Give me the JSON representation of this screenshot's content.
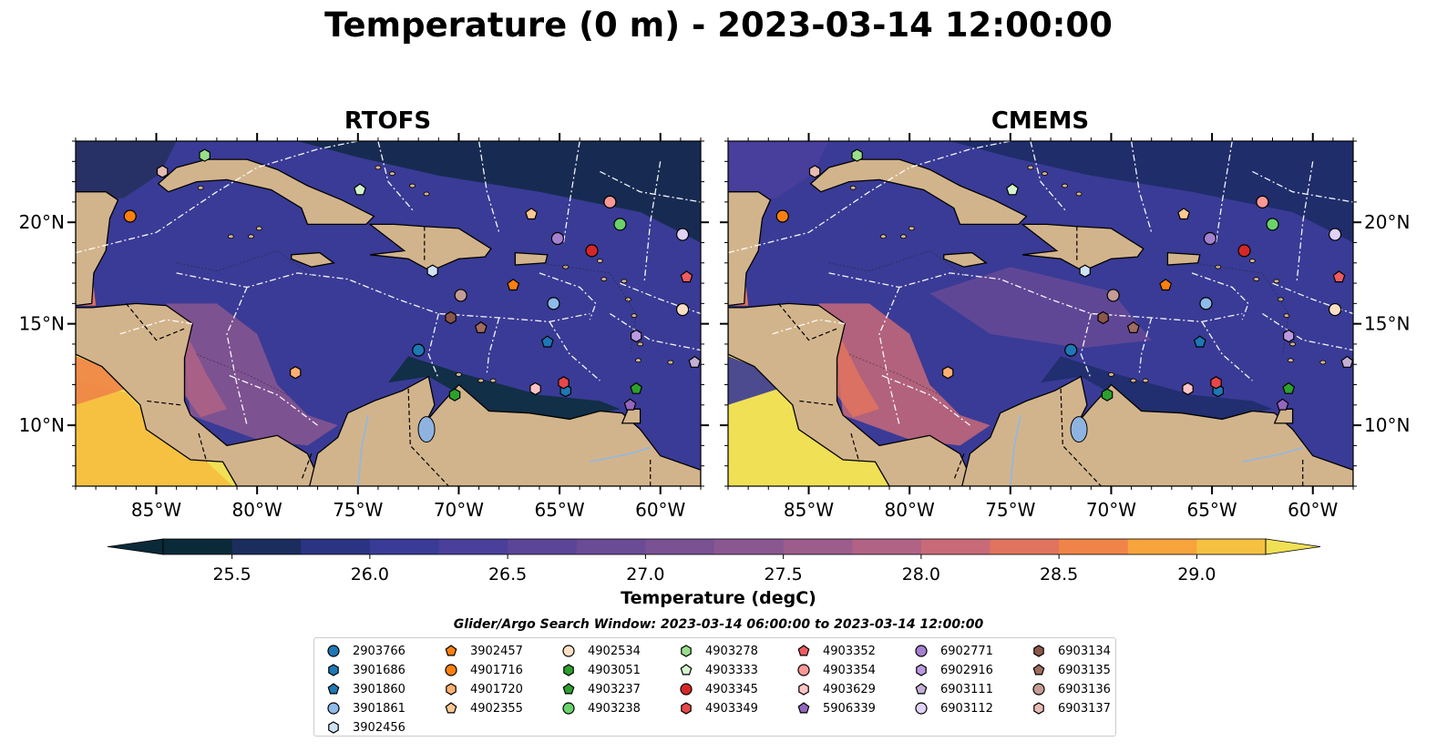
{
  "figure": {
    "title": "Temperature (0 m) - 2023-03-14 12:00:00",
    "panels": [
      {
        "title": "RTOFS"
      },
      {
        "title": "CMEMS"
      }
    ]
  },
  "colorbar": {
    "label": "Temperature (degC)",
    "min": 25.25,
    "max": 29.25,
    "step": 0.25,
    "ticks": [
      "25.5",
      "26.0",
      "26.5",
      "27.0",
      "27.5",
      "28.0",
      "28.5",
      "29.0"
    ],
    "extend": "both",
    "colors": [
      "#0a2a3a",
      "#1b2d5c",
      "#2b3483",
      "#3a3b96",
      "#4a3f9b",
      "#5a4599",
      "#6a4b96",
      "#7a5193",
      "#8a5790",
      "#9c5c8c",
      "#b06385",
      "#c86a78",
      "#e0745e",
      "#f08448",
      "#f7a43c",
      "#f6c141",
      "#f0e055"
    ]
  },
  "map": {
    "lon_ticks": [
      "85°W",
      "80°W",
      "75°W",
      "70°W",
      "65°W",
      "60°W"
    ],
    "lat_ticks": [
      "20°N",
      "15°N",
      "10°N"
    ],
    "land_color": "#d2b48c",
    "ocean_default": "#3a3b96",
    "warm_color": "#f0e055",
    "cool_color": "#0a2a3a"
  },
  "legend": {
    "title": "Glider/Argo Search Window: 2023-03-14 06:00:00 to 2023-03-14 12:00:00",
    "position": "lower center",
    "columns": [
      [
        {
          "id": "2903766",
          "color": "#1f77b4",
          "marker": "circle"
        },
        {
          "id": "3901686",
          "color": "#1f77b4",
          "marker": "hexagon"
        },
        {
          "id": "3901860",
          "color": "#1f77b4",
          "marker": "pentagon"
        },
        {
          "id": "3901861",
          "color": "#8fbbe8",
          "marker": "circle"
        },
        {
          "id": "3902456",
          "color": "#cfe3f5",
          "marker": "hexagon"
        }
      ],
      [
        {
          "id": "3902457",
          "color": "#ff7f0e",
          "marker": "pentagon"
        },
        {
          "id": "4901716",
          "color": "#ff7f0e",
          "marker": "circle"
        },
        {
          "id": "4901720",
          "color": "#ffb070",
          "marker": "hexagon"
        },
        {
          "id": "4902355",
          "color": "#ffc890",
          "marker": "pentagon"
        }
      ],
      [
        {
          "id": "4902534",
          "color": "#fde0c4",
          "marker": "circle"
        },
        {
          "id": "4903051",
          "color": "#2ca02c",
          "marker": "hexagon"
        },
        {
          "id": "4903237",
          "color": "#2ca02c",
          "marker": "pentagon"
        },
        {
          "id": "4903238",
          "color": "#6ad26a",
          "marker": "circle"
        }
      ],
      [
        {
          "id": "4903278",
          "color": "#98df8a",
          "marker": "hexagon"
        },
        {
          "id": "4903333",
          "color": "#d4f5cc",
          "marker": "pentagon"
        },
        {
          "id": "4903345",
          "color": "#d62728",
          "marker": "circle"
        },
        {
          "id": "4903349",
          "color": "#e8474a",
          "marker": "hexagon"
        }
      ],
      [
        {
          "id": "4903352",
          "color": "#ef5b5f",
          "marker": "pentagon"
        },
        {
          "id": "4903354",
          "color": "#ff9896",
          "marker": "circle"
        },
        {
          "id": "4903629",
          "color": "#ffc4c3",
          "marker": "hexagon"
        },
        {
          "id": "5906339",
          "color": "#9467bd",
          "marker": "pentagon"
        }
      ],
      [
        {
          "id": "6902771",
          "color": "#a57fd0",
          "marker": "circle"
        },
        {
          "id": "6902916",
          "color": "#bb99e0",
          "marker": "hexagon"
        },
        {
          "id": "6903111",
          "color": "#c5b0d5",
          "marker": "pentagon"
        },
        {
          "id": "6903112",
          "color": "#e2d2f5",
          "marker": "circle"
        }
      ],
      [
        {
          "id": "6903134",
          "color": "#8c564b",
          "marker": "hexagon"
        },
        {
          "id": "6903135",
          "color": "#a16b5f",
          "marker": "pentagon"
        },
        {
          "id": "6903136",
          "color": "#c49c94",
          "marker": "circle"
        },
        {
          "id": "6903137",
          "color": "#e6bbb2",
          "marker": "hexagon"
        }
      ]
    ]
  },
  "chart_data": [
    {
      "type": "heatmap",
      "title": "RTOFS",
      "variable": "Temperature (0 m)",
      "units": "degC",
      "xlim": [
        -89,
        -58
      ],
      "ylim": [
        7,
        24
      ],
      "x_ticks": [
        -85,
        -80,
        -75,
        -70,
        -65,
        -60
      ],
      "y_ticks": [
        20,
        15,
        10
      ],
      "color_range": [
        25.25,
        29.25
      ],
      "floats": [
        {
          "id": "2903766",
          "lon": -72.0,
          "lat": 13.7
        },
        {
          "id": "3901686",
          "lon": -64.7,
          "lat": 11.7
        },
        {
          "id": "3901860",
          "lon": -65.6,
          "lat": 14.1
        },
        {
          "id": "3901861",
          "lon": -65.3,
          "lat": 16.0
        },
        {
          "id": "3902456",
          "lon": -71.3,
          "lat": 17.6
        },
        {
          "id": "3902457",
          "lon": -67.3,
          "lat": 16.9
        },
        {
          "id": "4901716",
          "lon": -86.3,
          "lat": 20.3
        },
        {
          "id": "4901720",
          "lon": -78.1,
          "lat": 12.6
        },
        {
          "id": "4902355",
          "lon": -66.4,
          "lat": 20.4
        },
        {
          "id": "4902534",
          "lon": -58.9,
          "lat": 15.7
        },
        {
          "id": "4903051",
          "lon": -70.2,
          "lat": 11.5
        },
        {
          "id": "4903237",
          "lon": -61.2,
          "lat": 11.8
        },
        {
          "id": "4903238",
          "lon": -62.0,
          "lat": 19.9
        },
        {
          "id": "4903278",
          "lon": -82.6,
          "lat": 23.3
        },
        {
          "id": "4903333",
          "lon": -74.9,
          "lat": 21.6
        },
        {
          "id": "4903345",
          "lon": -63.4,
          "lat": 18.6
        },
        {
          "id": "4903349",
          "lon": -64.8,
          "lat": 12.1
        },
        {
          "id": "4903352",
          "lon": -58.7,
          "lat": 17.3
        },
        {
          "id": "4903354",
          "lon": -62.5,
          "lat": 21.0
        },
        {
          "id": "4903629",
          "lon": -66.2,
          "lat": 11.8
        },
        {
          "id": "5906339",
          "lon": -61.5,
          "lat": 11.0
        },
        {
          "id": "6902771",
          "lon": -65.1,
          "lat": 19.2
        },
        {
          "id": "6902916",
          "lon": -61.2,
          "lat": 14.4
        },
        {
          "id": "6903111",
          "lon": -58.3,
          "lat": 13.1
        },
        {
          "id": "6903112",
          "lon": -58.9,
          "lat": 19.4
        },
        {
          "id": "6903134",
          "lon": -70.4,
          "lat": 15.3
        },
        {
          "id": "6903135",
          "lon": -68.9,
          "lat": 14.8
        },
        {
          "id": "6903136",
          "lon": -69.9,
          "lat": 16.4
        },
        {
          "id": "6903137",
          "lon": -84.7,
          "lat": 22.5
        }
      ]
    },
    {
      "type": "heatmap",
      "title": "CMEMS",
      "variable": "Temperature (0 m)",
      "units": "degC",
      "xlim": [
        -89,
        -58
      ],
      "ylim": [
        7,
        24
      ],
      "x_ticks": [
        -85,
        -80,
        -75,
        -70,
        -65,
        -60
      ],
      "y_ticks": [
        20,
        15,
        10
      ],
      "color_range": [
        25.25,
        29.25
      ],
      "floats": [
        {
          "id": "2903766",
          "lon": -72.0,
          "lat": 13.7
        },
        {
          "id": "3901686",
          "lon": -64.7,
          "lat": 11.7
        },
        {
          "id": "3901860",
          "lon": -65.6,
          "lat": 14.1
        },
        {
          "id": "3901861",
          "lon": -65.3,
          "lat": 16.0
        },
        {
          "id": "3902456",
          "lon": -71.3,
          "lat": 17.6
        },
        {
          "id": "3902457",
          "lon": -67.3,
          "lat": 16.9
        },
        {
          "id": "4901716",
          "lon": -86.3,
          "lat": 20.3
        },
        {
          "id": "4901720",
          "lon": -78.1,
          "lat": 12.6
        },
        {
          "id": "4902355",
          "lon": -66.4,
          "lat": 20.4
        },
        {
          "id": "4902534",
          "lon": -58.9,
          "lat": 15.7
        },
        {
          "id": "4903051",
          "lon": -70.2,
          "lat": 11.5
        },
        {
          "id": "4903237",
          "lon": -61.2,
          "lat": 11.8
        },
        {
          "id": "4903238",
          "lon": -62.0,
          "lat": 19.9
        },
        {
          "id": "4903278",
          "lon": -82.6,
          "lat": 23.3
        },
        {
          "id": "4903333",
          "lon": -74.9,
          "lat": 21.6
        },
        {
          "id": "4903345",
          "lon": -63.4,
          "lat": 18.6
        },
        {
          "id": "4903349",
          "lon": -64.8,
          "lat": 12.1
        },
        {
          "id": "4903352",
          "lon": -58.7,
          "lat": 17.3
        },
        {
          "id": "4903354",
          "lon": -62.5,
          "lat": 21.0
        },
        {
          "id": "4903629",
          "lon": -66.2,
          "lat": 11.8
        },
        {
          "id": "5906339",
          "lon": -61.5,
          "lat": 11.0
        },
        {
          "id": "6902771",
          "lon": -65.1,
          "lat": 19.2
        },
        {
          "id": "6902916",
          "lon": -61.2,
          "lat": 14.4
        },
        {
          "id": "6903111",
          "lon": -58.3,
          "lat": 13.1
        },
        {
          "id": "6903112",
          "lon": -58.9,
          "lat": 19.4
        },
        {
          "id": "6903134",
          "lon": -70.4,
          "lat": 15.3
        },
        {
          "id": "6903135",
          "lon": -68.9,
          "lat": 14.8
        },
        {
          "id": "6903136",
          "lon": -69.9,
          "lat": 16.4
        },
        {
          "id": "6903137",
          "lon": -84.7,
          "lat": 22.5
        }
      ]
    }
  ]
}
